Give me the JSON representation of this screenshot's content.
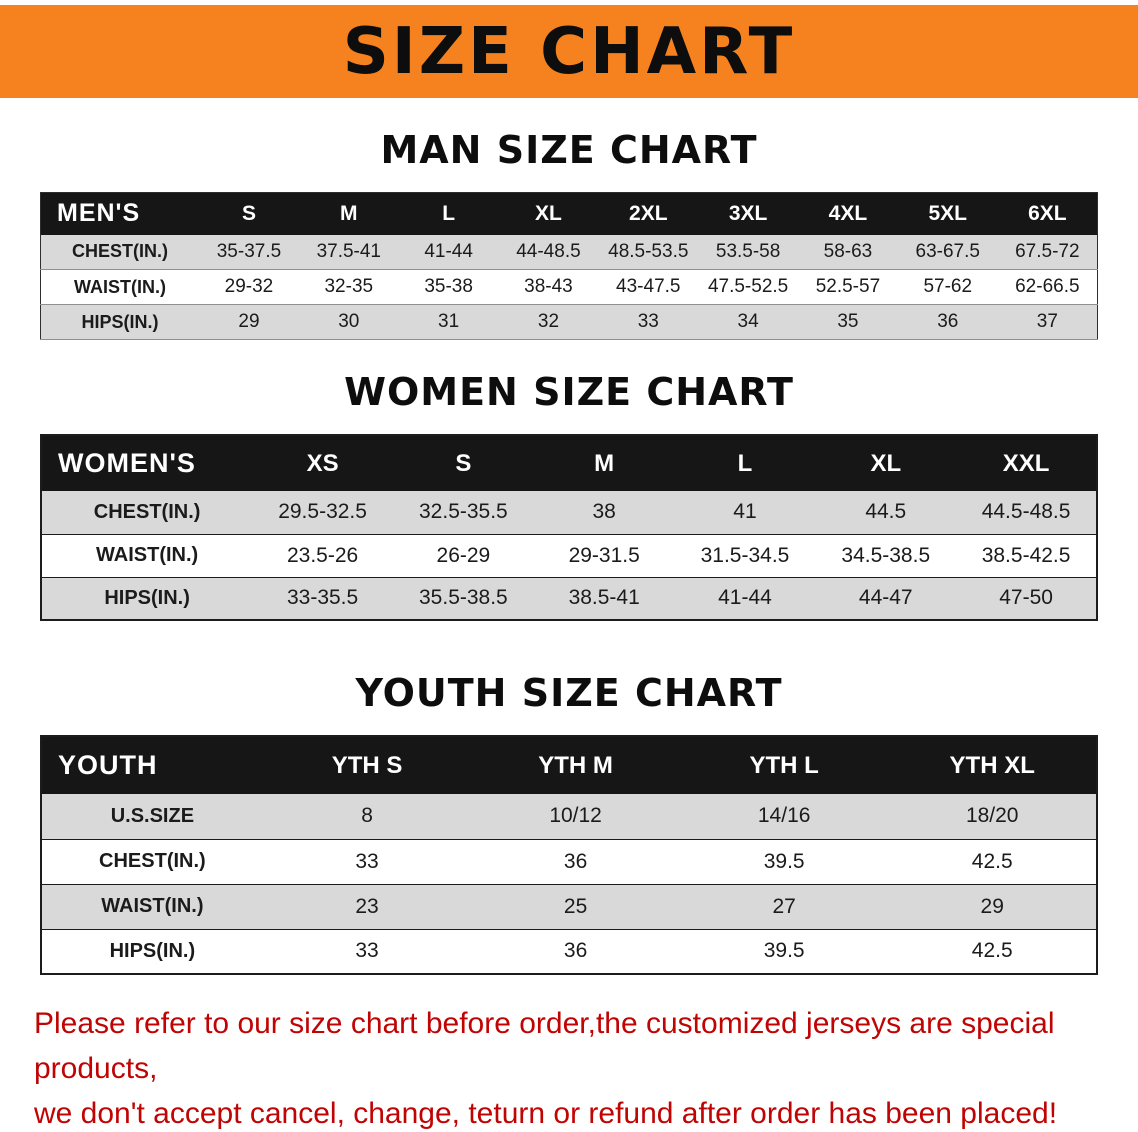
{
  "banner": {
    "title": "SIZE CHART",
    "bg_color": "#F5821E",
    "text_color": "#0d0d0d"
  },
  "tables": {
    "men": {
      "title": "MAN SIZE CHART",
      "header": [
        "MEN'S",
        "S",
        "M",
        "L",
        "XL",
        "2XL",
        "3XL",
        "4XL",
        "5XL",
        "6XL"
      ],
      "rows": [
        [
          "CHEST(IN.)",
          "35-37.5",
          "37.5-41",
          "41-44",
          "44-48.5",
          "48.5-53.5",
          "53.5-58",
          "58-63",
          "63-67.5",
          "67.5-72"
        ],
        [
          "WAIST(IN.)",
          "29-32",
          "32-35",
          "35-38",
          "38-43",
          "43-47.5",
          "47.5-52.5",
          "52.5-57",
          "57-62",
          "62-66.5"
        ],
        [
          "HIPS(IN.)",
          "29",
          "30",
          "31",
          "32",
          "33",
          "34",
          "35",
          "36",
          "37"
        ]
      ]
    },
    "women": {
      "title": "WOMEN SIZE CHART",
      "header": [
        "WOMEN'S",
        "XS",
        "S",
        "M",
        "L",
        "XL",
        "XXL"
      ],
      "rows": [
        [
          "CHEST(IN.)",
          "29.5-32.5",
          "32.5-35.5",
          "38",
          "41",
          "44.5",
          "44.5-48.5"
        ],
        [
          "WAIST(IN.)",
          "23.5-26",
          "26-29",
          "29-31.5",
          "31.5-34.5",
          "34.5-38.5",
          "38.5-42.5"
        ],
        [
          "HIPS(IN.)",
          "33-35.5",
          "35.5-38.5",
          "38.5-41",
          "41-44",
          "44-47",
          "47-50"
        ]
      ]
    },
    "youth": {
      "title": "YOUTH SIZE CHART",
      "header": [
        "YOUTH",
        "YTH S",
        "YTH M",
        "YTH L",
        "YTH XL"
      ],
      "rows": [
        [
          "U.S.SIZE",
          "8",
          "10/12",
          "14/16",
          "18/20"
        ],
        [
          "CHEST(IN.)",
          "33",
          "36",
          "39.5",
          "42.5"
        ],
        [
          "WAIST(IN.)",
          "23",
          "25",
          "27",
          "29"
        ],
        [
          "HIPS(IN.)",
          "33",
          "36",
          "39.5",
          "42.5"
        ]
      ]
    }
  },
  "disclaimer": {
    "lines": [
      "Please refer to our size chart before order,the customized jerseys are special products,",
      "we don't accept cancel, change, teturn or refund after order has been placed!"
    ],
    "color": "#C00404"
  },
  "colors": {
    "banner_orange": "#F5821E",
    "header_black": "#161616",
    "row_gray": "#D9D9D9",
    "disclaimer_red": "#C00404"
  }
}
